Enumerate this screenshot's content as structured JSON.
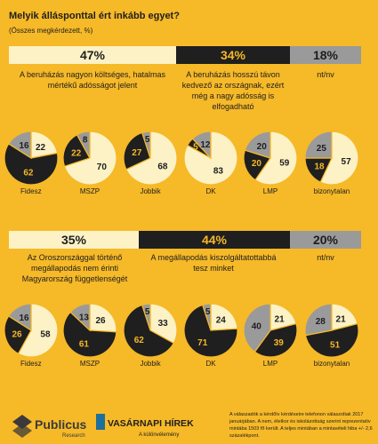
{
  "title": "Melyik állásponttal ért inkább egyet?",
  "subtitle": "(Összes megkérdezett, %)",
  "colors": {
    "background": "#f6b928",
    "light": "#fcf2c6",
    "dark": "#1f1f1f",
    "gray": "#9a9a9a"
  },
  "chart_data": [
    {
      "type": "pie",
      "options": [
        {
          "percent_label": "47%",
          "value": 47,
          "caption": "A beruházás nagyon költséges, hatalmas mértékű adósságot jelent"
        },
        {
          "percent_label": "34%",
          "value": 34,
          "caption": "A beruházás hosszú távon kedvező az országnak, ezért még a nagy adósság is elfogadható"
        },
        {
          "percent_label": "18%",
          "value": 18,
          "caption": "nt/nv"
        }
      ],
      "groups": [
        {
          "name": "Fidesz",
          "values": [
            22,
            62,
            16
          ]
        },
        {
          "name": "MSZP",
          "values": [
            70,
            22,
            8
          ]
        },
        {
          "name": "Jobbik",
          "values": [
            68,
            27,
            5
          ]
        },
        {
          "name": "DK",
          "values": [
            83,
            5,
            12
          ]
        },
        {
          "name": "LMP",
          "values": [
            59,
            20,
            20
          ]
        },
        {
          "name": "bizonytalan",
          "values": [
            57,
            18,
            25
          ]
        }
      ]
    },
    {
      "type": "pie",
      "options": [
        {
          "percent_label": "35%",
          "value": 35,
          "caption": "Az Oroszországgal történő megállapodás nem érinti Magyarország függetlenségét"
        },
        {
          "percent_label": "44%",
          "value": 44,
          "caption": "A megállapodás kiszolgáltatottabbá tesz minket"
        },
        {
          "percent_label": "20%",
          "value": 20,
          "caption": "nt/nv"
        }
      ],
      "groups": [
        {
          "name": "Fidesz",
          "values": [
            58,
            26,
            16
          ]
        },
        {
          "name": "MSZP",
          "values": [
            26,
            61,
            13
          ]
        },
        {
          "name": "Jobbik",
          "values": [
            33,
            62,
            5
          ]
        },
        {
          "name": "DK",
          "values": [
            24,
            71,
            5
          ]
        },
        {
          "name": "LMP",
          "values": [
            21,
            39,
            40
          ]
        },
        {
          "name": "bizonytalan",
          "values": [
            21,
            51,
            28
          ]
        }
      ]
    }
  ],
  "footer": {
    "note": "A válaszadók a kérdőív kérdéseire telefonon válaszoltak 2017 januárjában. A nem, életkor és iskolázottság szerint reprezentatív mintába 1503 fő került. A teljes mintában a mintavételi hiba +/- 2,6 százalékpont.",
    "logo1_name": "Publicus",
    "logo1_sub": "Research",
    "logo2_name": "VASÁRNAPI HÍREK",
    "logo2_sub": "A különvélemény"
  }
}
